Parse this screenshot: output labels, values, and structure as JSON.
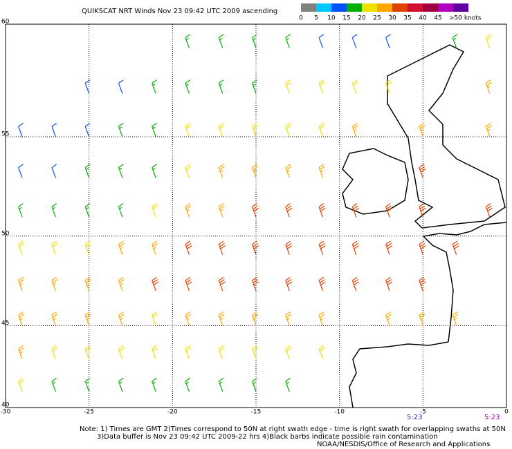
{
  "header": {
    "title": "QUIKSCAT NRT Winds Nov 23 09:42 UTC 2009 ascending"
  },
  "legend": {
    "ticks": [
      0,
      5,
      10,
      15,
      20,
      25,
      30,
      35,
      40,
      45
    ],
    "last_label": ">50 knots",
    "colors": [
      "#808080",
      "#00c8ff",
      "#0050ff",
      "#00b000",
      "#f0e000",
      "#ffa500",
      "#e04000",
      "#d01030",
      "#a00040",
      "#b000c0",
      "#6000a0"
    ]
  },
  "map": {
    "lon_ticks": [
      -30,
      -25,
      -20,
      -15,
      -10,
      -5,
      0
    ],
    "lat_ticks": [
      60,
      55,
      50,
      45,
      40
    ],
    "lon_range": [
      -30,
      0
    ],
    "lat_range": [
      40,
      60
    ]
  },
  "wind": {
    "lat": [
      59,
      57,
      55,
      53,
      51,
      49,
      47,
      45,
      43,
      41
    ],
    "lon": [
      -29,
      -27,
      -25,
      -23,
      -21,
      -19,
      -17,
      -15,
      -13,
      -11,
      -9,
      -7,
      -5,
      -3,
      -1
    ],
    "speed": [
      [
        null,
        null,
        null,
        null,
        null,
        15,
        17,
        15,
        15,
        12,
        12,
        14,
        null,
        18,
        20
      ],
      [
        null,
        null,
        10,
        12,
        15,
        15,
        17,
        18,
        20,
        20,
        22,
        20,
        null,
        null,
        25
      ],
      [
        10,
        10,
        12,
        15,
        15,
        20,
        22,
        22,
        22,
        22,
        25,
        null,
        28,
        null,
        27
      ],
      [
        12,
        12,
        15,
        15,
        18,
        22,
        25,
        25,
        27,
        28,
        null,
        null,
        30,
        null,
        null
      ],
      [
        15,
        15,
        18,
        18,
        20,
        25,
        27,
        30,
        30,
        30,
        30,
        30,
        30,
        null,
        30
      ],
      [
        20,
        22,
        22,
        25,
        27,
        30,
        30,
        32,
        32,
        32,
        32,
        30,
        30,
        30,
        null
      ],
      [
        25,
        25,
        27,
        27,
        30,
        30,
        32,
        32,
        30,
        30,
        30,
        32,
        30,
        null,
        null
      ],
      [
        27,
        27,
        25,
        25,
        22,
        25,
        27,
        27,
        27,
        27,
        null,
        25,
        25,
        27,
        null
      ],
      [
        25,
        22,
        20,
        20,
        20,
        22,
        22,
        22,
        20,
        20,
        null,
        null,
        null,
        null,
        null
      ],
      [
        20,
        18,
        15,
        15,
        15,
        17,
        17,
        15,
        15,
        null,
        null,
        null,
        null,
        null,
        null
      ]
    ]
  },
  "swath_times": [
    "5:23",
    "5:23"
  ],
  "notes": [
    "Note: 1) Times are GMT 2)Times correspond to 50N at right swath edge - time is right swath for overlapping swaths at 50N",
    "3)Data buffer is Nov 23 09:42 UTC 2009-22 hrs 4)Black barbs indicate possible rain contamination",
    "NOAA/NESDIS/Office of Research and Applications"
  ]
}
